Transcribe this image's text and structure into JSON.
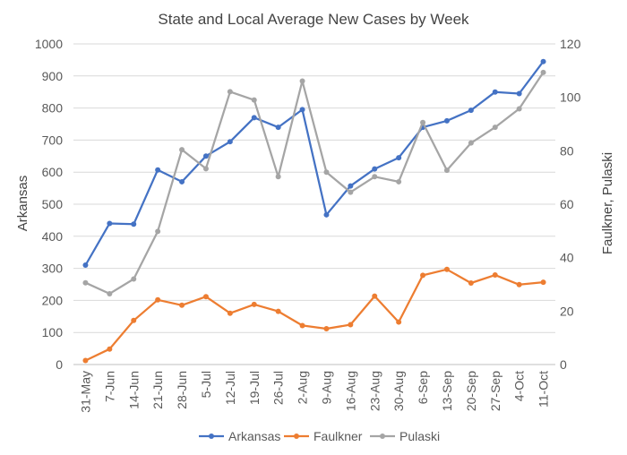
{
  "chart_data": {
    "type": "line",
    "title": "State and Local Average New Cases by Week",
    "ylabel_left": "Arkansas",
    "ylabel_right": "Faulkner, Pulaski",
    "ylim_left": [
      0,
      1000
    ],
    "ylim_right": [
      0,
      120
    ],
    "yticks_left": [
      "0",
      "100",
      "200",
      "300",
      "400",
      "500",
      "600",
      "700",
      "800",
      "900",
      "1000"
    ],
    "yticks_right": [
      "0",
      "20",
      "40",
      "60",
      "80",
      "100",
      "120"
    ],
    "grid": true,
    "legend_position": "bottom",
    "categories": [
      "31-May",
      "7-Jun",
      "14-Jun",
      "21-Jun",
      "28-Jun",
      "5-Jul",
      "12-Jul",
      "19-Jul",
      "26-Jul",
      "2-Aug",
      "9-Aug",
      "16-Aug",
      "23-Aug",
      "30-Aug",
      "6-Sep",
      "13-Sep",
      "20-Sep",
      "27-Sep",
      "4-Oct",
      "11-Oct"
    ],
    "series": [
      {
        "name": "Arkansas",
        "axis": "left",
        "color": "#4472c4",
        "values": [
          310,
          440,
          438,
          607,
          570,
          650,
          695,
          770,
          740,
          795,
          467,
          557,
          610,
          645,
          740,
          760,
          793,
          850,
          845,
          945
        ]
      },
      {
        "name": "Faulkner",
        "axis": "right",
        "color": "#ed7d31",
        "values": [
          1.5,
          5.8,
          16.5,
          24.2,
          22.2,
          25.4,
          19.2,
          22.5,
          19.9,
          14.6,
          13.4,
          14.9,
          25.6,
          15.9,
          33.4,
          35.6,
          30.5,
          33.5,
          29.9,
          30.8
        ]
      },
      {
        "name": "Pulaski",
        "axis": "right",
        "color": "#a5a5a5",
        "values": [
          30.6,
          26.5,
          32.0,
          49.8,
          80.4,
          73.3,
          102.1,
          99.0,
          70.3,
          106.1,
          72.0,
          64.5,
          70.3,
          68.4,
          90.6,
          72.7,
          82.9,
          88.8,
          95.7,
          109.3
        ]
      }
    ]
  }
}
